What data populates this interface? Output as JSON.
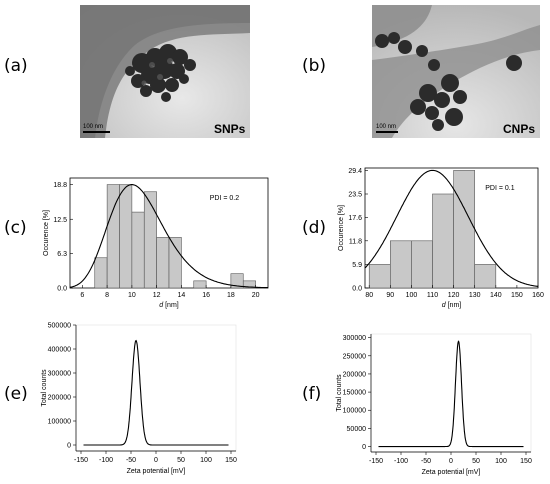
{
  "panel_labels": [
    "(a)",
    "(b)",
    "(c)",
    "(d)",
    "(e)",
    "(f)"
  ],
  "tem": [
    {
      "tag": "SNPs",
      "scale_bar": "100 nm"
    },
    {
      "tag": "CNPs",
      "scale_bar": "100 nm"
    }
  ],
  "chart_data": [
    {
      "type": "bar",
      "panel": "(c)",
      "xlabel_italic": "d",
      "xlabel_unit": " [nm]",
      "ylabel": "Occurence [%]",
      "xlim": [
        5,
        21
      ],
      "ylim": [
        0,
        20
      ],
      "xticks": [
        6,
        8,
        10,
        12,
        14,
        16,
        18,
        20
      ],
      "yticks": [
        0.0,
        6.3,
        12.5,
        18.8
      ],
      "ytick_labels": [
        "0.0",
        "6.3",
        "12.5",
        "18.8"
      ],
      "bin_edges": [
        7,
        8,
        9,
        10,
        11,
        12,
        13,
        14,
        15,
        16,
        17,
        18,
        19,
        20
      ],
      "values": [
        5.5,
        18.8,
        18.8,
        13.8,
        17.5,
        9.2,
        9.2,
        0,
        1.3,
        0,
        0,
        2.6,
        1.3
      ],
      "fit_curve": {
        "type": "lognormal",
        "peak_x": 10.0,
        "peak_y": 18.8
      },
      "annotation": "PDI = 0.2"
    },
    {
      "type": "bar",
      "panel": "(d)",
      "xlabel_italic": "d",
      "xlabel_unit": " [nm]",
      "ylabel": "Occurence [%]",
      "xlim": [
        78,
        160
      ],
      "ylim": [
        0,
        30
      ],
      "xticks": [
        80,
        90,
        100,
        110,
        120,
        130,
        140,
        150,
        160
      ],
      "yticks": [
        0.0,
        5.9,
        11.8,
        17.6,
        23.5,
        29.4
      ],
      "ytick_labels": [
        "0.0",
        "5.9",
        "11.8",
        "17.6",
        "23.5",
        "29.4"
      ],
      "bin_edges": [
        80,
        90,
        100,
        110,
        120,
        130,
        140
      ],
      "values": [
        5.9,
        11.8,
        11.8,
        23.5,
        29.4,
        5.9
      ],
      "fit_curve": {
        "type": "gaussian",
        "peak_x": 110,
        "peak_y": 29.4,
        "sigma": 17
      },
      "annotation": "PDI = 0.1"
    },
    {
      "type": "line",
      "panel": "(e)",
      "xlabel": "Zeta potential [mV]",
      "ylabel": "Total counts",
      "xlim": [
        -160,
        160
      ],
      "ylim": [
        -25000,
        500000
      ],
      "xticks": [
        -150,
        -100,
        -50,
        0,
        50,
        100,
        150
      ],
      "yticks": [
        0,
        100000,
        200000,
        300000,
        400000,
        500000
      ],
      "ytick_labels": [
        "0",
        "100000",
        "200000",
        "300000",
        "400000",
        "500000"
      ],
      "peak": {
        "x": -40,
        "y": 435000,
        "width": 8
      },
      "x_range": [
        -145,
        145
      ]
    },
    {
      "type": "line",
      "panel": "(f)",
      "xlabel": "Zeta potential [mV]",
      "ylabel": "Total counts",
      "xlim": [
        -160,
        160
      ],
      "ylim": [
        -15000,
        310000
      ],
      "xticks": [
        -150,
        -100,
        -50,
        0,
        50,
        100,
        150
      ],
      "yticks": [
        0,
        50000,
        100000,
        150000,
        200000,
        250000,
        300000
      ],
      "ytick_labels": [
        "0",
        "50000",
        "100000",
        "150000",
        "200000",
        "250000",
        "300000"
      ],
      "peak": {
        "x": 15,
        "y": 290000,
        "width": 6
      },
      "x_range": [
        -145,
        145
      ]
    }
  ]
}
